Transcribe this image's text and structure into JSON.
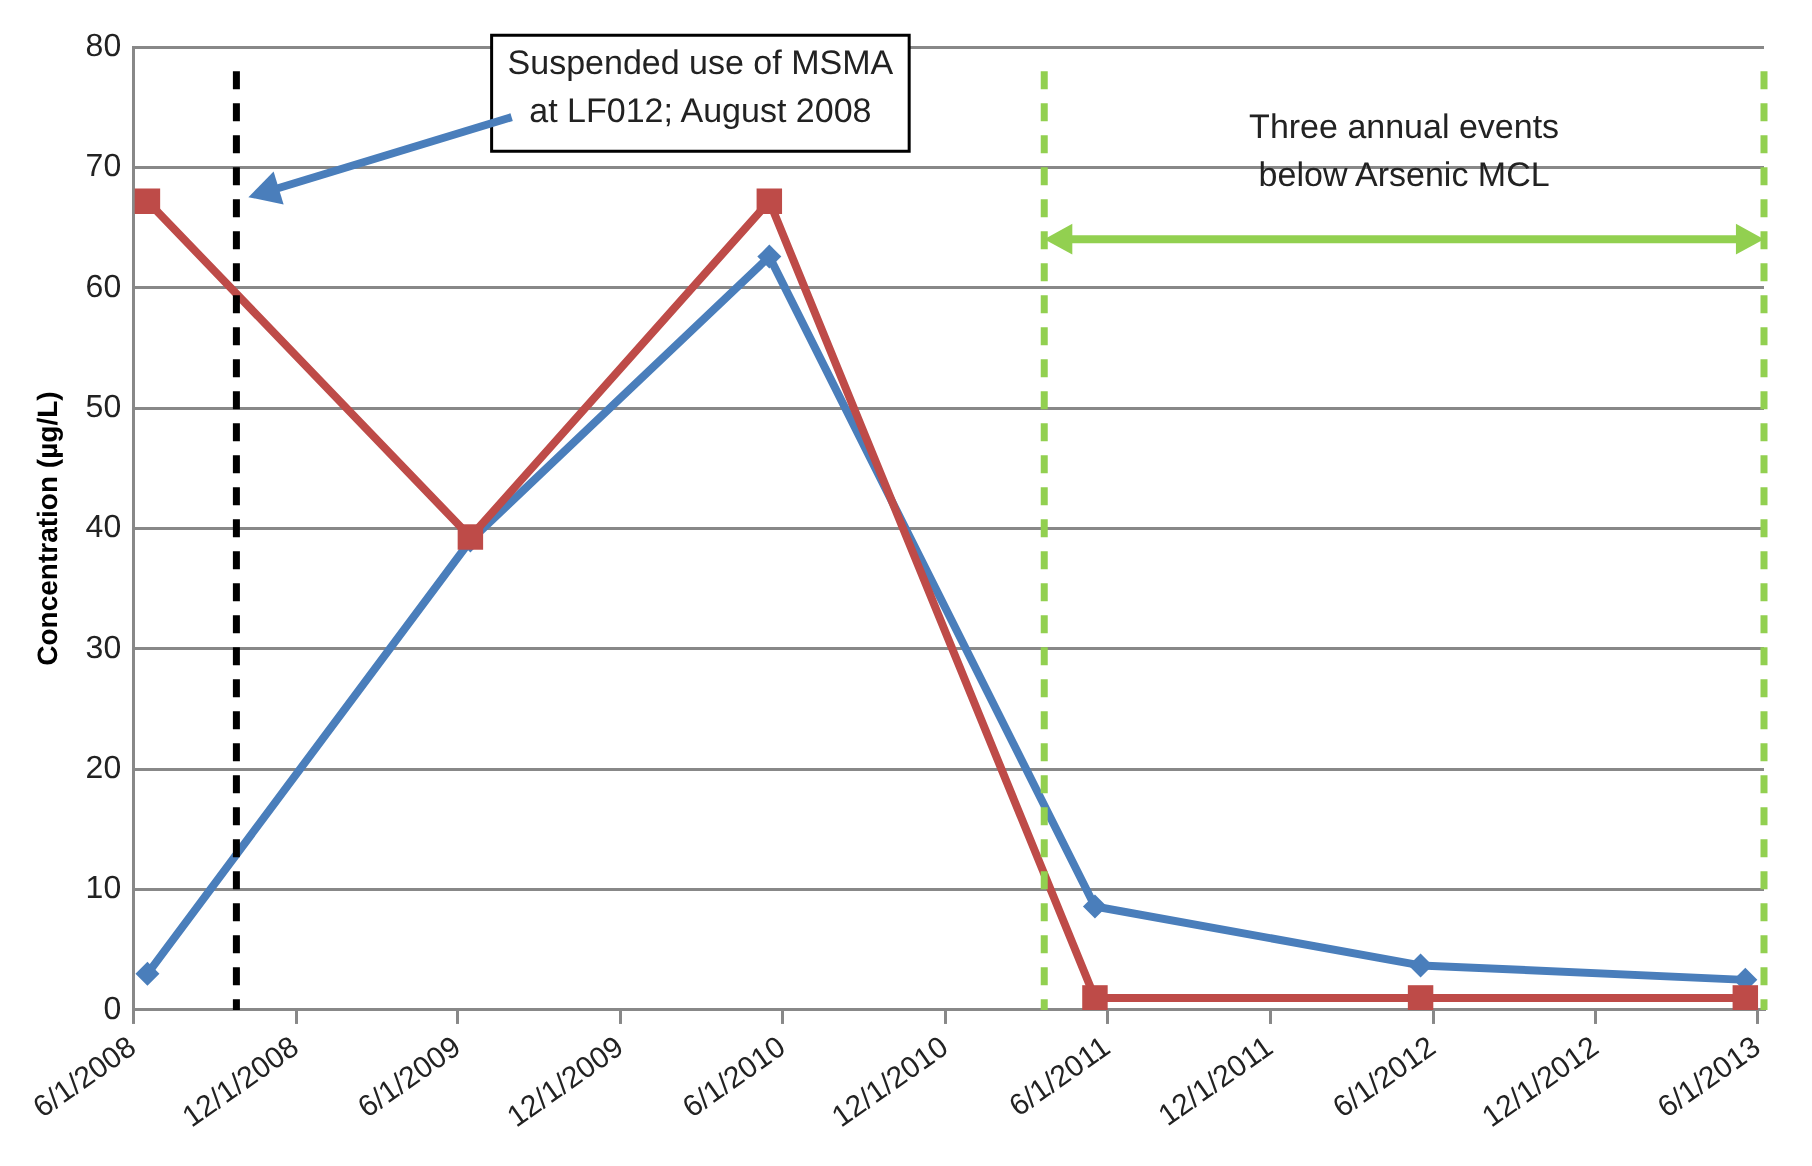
{
  "chart_data": {
    "type": "line",
    "ylabel": "Concentration (µg/L)",
    "series": [
      {
        "color": "#4a7ebb",
        "marker": "diamond",
        "x": [
          "2008-06-17",
          "2009-06-15",
          "2010-05-17",
          "2011-05-18",
          "2012-05-18",
          "2013-05-18"
        ],
        "values": [
          3.0,
          39,
          62.6,
          8.6,
          3.7,
          2.5
        ]
      },
      {
        "color": "#be4b48",
        "marker": "square",
        "x": [
          "2008-06-17",
          "2009-06-15",
          "2010-05-17",
          "2011-05-18",
          "2012-05-18",
          "2013-05-18"
        ],
        "values": [
          67.2,
          39.3,
          67.2,
          1.0,
          1.0,
          1.0
        ]
      }
    ],
    "xlim": [
      "2008-06-01",
      "2013-06-08"
    ],
    "xticks": [
      {
        "value": "2008-06-01",
        "label": "6/1/2008"
      },
      {
        "value": "2008-12-01",
        "label": "12/1/2008"
      },
      {
        "value": "2009-06-01",
        "label": "6/1/2009"
      },
      {
        "value": "2009-12-01",
        "label": "12/1/2009"
      },
      {
        "value": "2010-06-01",
        "label": "6/1/2010"
      },
      {
        "value": "2010-12-01",
        "label": "12/1/2010"
      },
      {
        "value": "2011-06-01",
        "label": "6/1/2011"
      },
      {
        "value": "2011-12-01",
        "label": "12/1/2011"
      },
      {
        "value": "2012-06-01",
        "label": "6/1/2012"
      },
      {
        "value": "2012-12-01",
        "label": "12/1/2012"
      },
      {
        "value": "2013-06-01",
        "label": "6/1/2013"
      }
    ],
    "ylim": [
      0,
      80
    ],
    "yticks": [
      0,
      10,
      20,
      30,
      40,
      50,
      60,
      70,
      80
    ],
    "grid": "y",
    "ref_lines": [
      {
        "axis": "x",
        "value": "2008-09-25",
        "label": "Suspended use of MSMA\nat LF012; August 2008",
        "color": "#000000",
        "line_style": "dashed"
      },
      {
        "axis": "x",
        "value": "2011-03-22",
        "color": "#92d050",
        "line_style": "dashed"
      },
      {
        "axis": "x",
        "value": "2013-06-08",
        "color": "#92d050",
        "line_style": "dashed"
      }
    ],
    "annotations": [
      "Three annual events\nbelow Arsenic MCL"
    ]
  }
}
